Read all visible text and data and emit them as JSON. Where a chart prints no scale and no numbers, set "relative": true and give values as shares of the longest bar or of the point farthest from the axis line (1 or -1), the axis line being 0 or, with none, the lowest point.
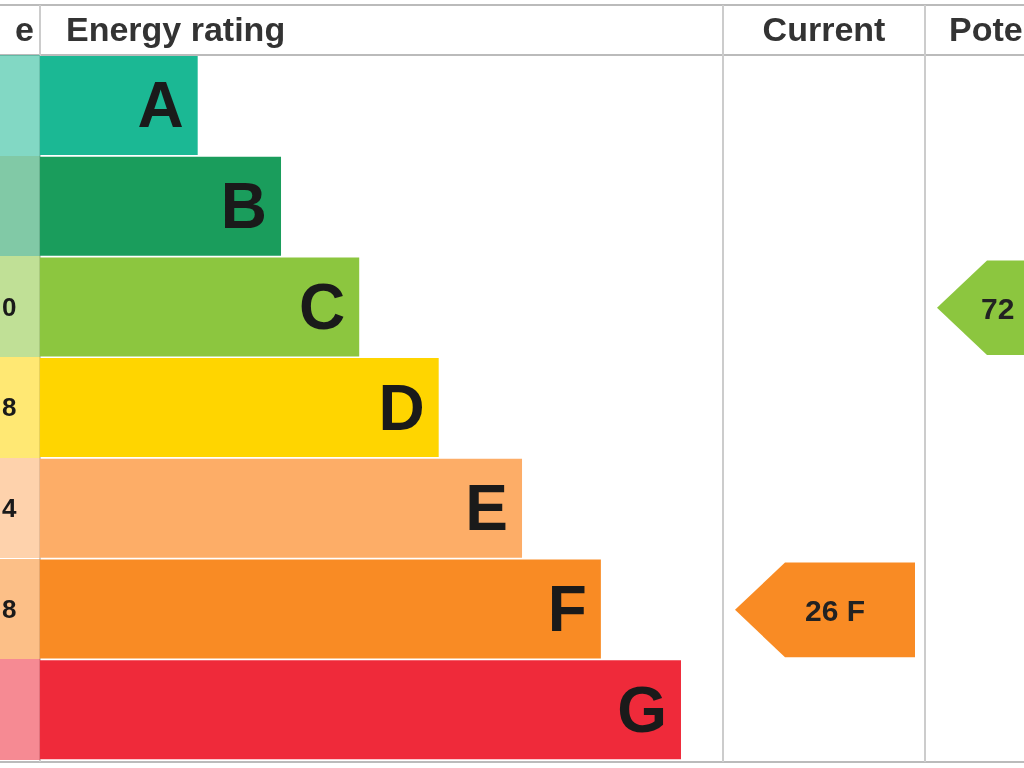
{
  "chart_data": {
    "type": "bar",
    "orientation": "horizontal",
    "relative": true,
    "title": "Energy rating",
    "categories": [
      "A",
      "B",
      "C",
      "D",
      "E",
      "F",
      "G"
    ],
    "values": [
      0.246,
      0.376,
      0.498,
      0.622,
      0.752,
      0.875,
      1
    ],
    "colors": [
      "#1bb894",
      "#1a9d5c",
      "#8cc63f",
      "#ffd500",
      "#fdad67",
      "#f98b24",
      "#ef2a3a"
    ],
    "annotations": [
      "e",
      "Current",
      "Pote",
      "0",
      "8",
      "4",
      "8",
      "26 F",
      "72"
    ]
  }
}
